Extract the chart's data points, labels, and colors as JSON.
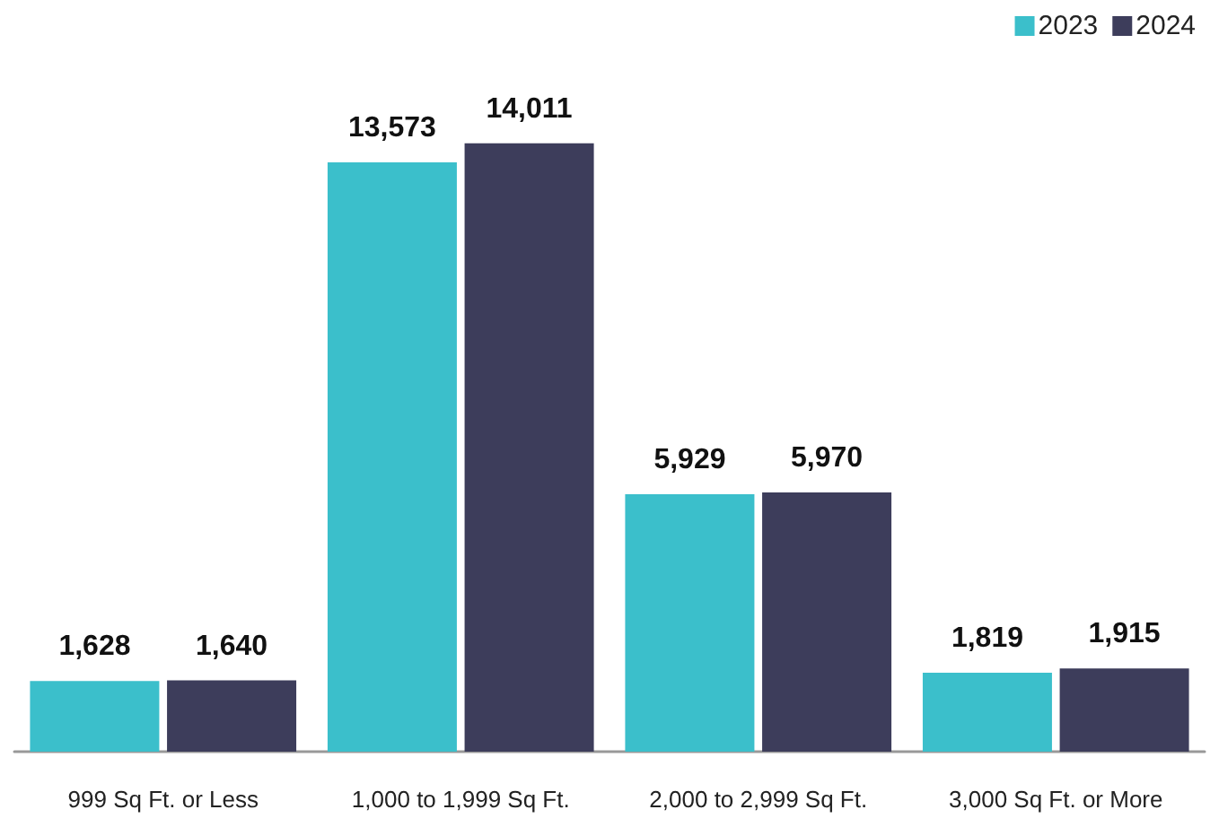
{
  "chart_data": {
    "type": "bar",
    "categories": [
      "999 Sq Ft. or Less",
      "1,000 to 1,999 Sq Ft.",
      "2,000 to 2,999 Sq Ft.",
      "3,000 Sq Ft. or More"
    ],
    "series": [
      {
        "name": "2023",
        "color": "#3bbfcb",
        "values": [
          1628,
          13573,
          5929,
          1819
        ],
        "value_labels": [
          "1,628",
          "13,573",
          "5,929",
          "1,819"
        ]
      },
      {
        "name": "2024",
        "color": "#3d3d5b",
        "values": [
          1640,
          14011,
          5970,
          1915
        ],
        "value_labels": [
          "1,640",
          "14,011",
          "5,970",
          "1,915"
        ]
      }
    ],
    "legend": "top right"
  }
}
